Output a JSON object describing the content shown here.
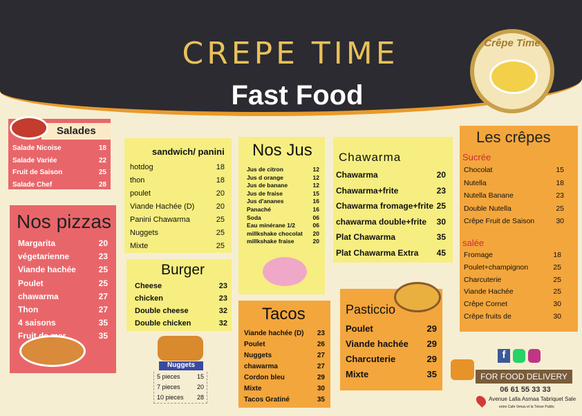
{
  "header": {
    "title": "CREPE TIME",
    "subtitle": "Fast Food",
    "logo_text": "Crêpe Time"
  },
  "salades": {
    "title": "Salades",
    "items": [
      [
        "Salade Nicoise",
        "18"
      ],
      [
        "Salade Variée",
        "22"
      ],
      [
        "Fruit de Saison",
        "25"
      ],
      [
        "Salade Chef",
        "28"
      ]
    ]
  },
  "pizzas": {
    "title": "Nos pizzas",
    "items": [
      [
        "Margarita",
        "20"
      ],
      [
        "végetarienne",
        "23"
      ],
      [
        "Viande hachée",
        "25"
      ],
      [
        "Poulet",
        "25"
      ],
      [
        "chawarma",
        "27"
      ],
      [
        "Thon",
        "27"
      ],
      [
        "4 saisons",
        "35"
      ],
      [
        "Fruit de mer",
        "35"
      ]
    ]
  },
  "sandwich": {
    "title": "sandwich/ panini",
    "items": [
      [
        "hotdog",
        "18"
      ],
      [
        "thon",
        "18"
      ],
      [
        "poulet",
        "20"
      ],
      [
        "Viande Hachée (D)",
        "20"
      ],
      [
        "Panini Chawarma",
        "25"
      ],
      [
        "Nuggets",
        "25"
      ],
      [
        "Mixte",
        "25"
      ]
    ]
  },
  "burger": {
    "title": "Burger",
    "items": [
      [
        "Cheese",
        "23"
      ],
      [
        "chicken",
        "23"
      ],
      [
        "Double cheese",
        "32"
      ],
      [
        "Double chicken",
        "32"
      ]
    ]
  },
  "nuggets": {
    "title": "Nuggets",
    "items": [
      [
        "5 pieces",
        "15"
      ],
      [
        "7 pieces",
        "20"
      ],
      [
        "10 pieces",
        "28"
      ]
    ]
  },
  "jus": {
    "title": "Nos Jus",
    "items": [
      [
        "Jus de citron",
        "12"
      ],
      [
        "Jus d orange",
        "12"
      ],
      [
        "Jus de banane",
        "12"
      ],
      [
        "Jus de fraise",
        "15"
      ],
      [
        "Jus d'ananes",
        "16"
      ],
      [
        "Panaché",
        "16"
      ],
      [
        "Soda",
        "06"
      ],
      [
        "Eau minérane 1/2",
        "06"
      ],
      [
        "millkshake chocolat",
        "20"
      ],
      [
        "millkshake fraise",
        "20"
      ]
    ]
  },
  "tacos": {
    "title": "Tacos",
    "items": [
      [
        "Viande hachée (D)",
        "23"
      ],
      [
        "Poulet",
        "26"
      ],
      [
        "Nuggets",
        "27"
      ],
      [
        "chawarma",
        "27"
      ],
      [
        "Cordon bleu",
        "29"
      ],
      [
        "Mixte",
        "30"
      ],
      [
        "Tacos Gratiné",
        "35"
      ]
    ]
  },
  "chawarma": {
    "title": "Chawarma",
    "items": [
      [
        "Chawarma",
        "20"
      ],
      [
        "Chawarma+frite",
        "23"
      ],
      [
        "Chawarma fromage+frite",
        "25"
      ],
      [
        "chawarma double+frite",
        "30"
      ],
      [
        "Plat Chawarma",
        "35"
      ],
      [
        "Plat Chawarma Extra",
        "45"
      ]
    ]
  },
  "pasticcio": {
    "title": "Pasticcio",
    "items": [
      [
        "Poulet",
        "29"
      ],
      [
        "Viande hachée",
        "29"
      ],
      [
        "Charcuterie",
        "29"
      ],
      [
        "Mixte",
        "35"
      ]
    ]
  },
  "crepes": {
    "title": "Les crêpes",
    "sucree_title": "Sucrée",
    "sucree": [
      [
        "Chocolat",
        "15"
      ],
      [
        "Nutella",
        "18"
      ],
      [
        "Nutella Banane",
        "23"
      ],
      [
        "Double Nutella",
        "25"
      ],
      [
        "Crêpe Fruit de Saison",
        "30"
      ]
    ],
    "salee_title": "salée",
    "salee": [
      [
        "Fromage",
        "18"
      ],
      [
        "Poulet+champignon",
        "25"
      ],
      [
        "Charcuterie",
        "25"
      ],
      [
        "Viande Hachée",
        "25"
      ],
      [
        "Crêpe Cornet",
        "30"
      ],
      [
        "Crêpe fruits de",
        "30"
      ]
    ]
  },
  "contact": {
    "social": [
      "facebook-icon",
      "whatsapp-icon",
      "instagram-icon"
    ],
    "delivery": "FOR FOOD DELIVERY",
    "phone": "06 61 55 33 33",
    "address": "Avenue Lalla Asmaa Tabriquet Sale",
    "address_note": "entre Cafe Venus et la Trésor Public"
  }
}
